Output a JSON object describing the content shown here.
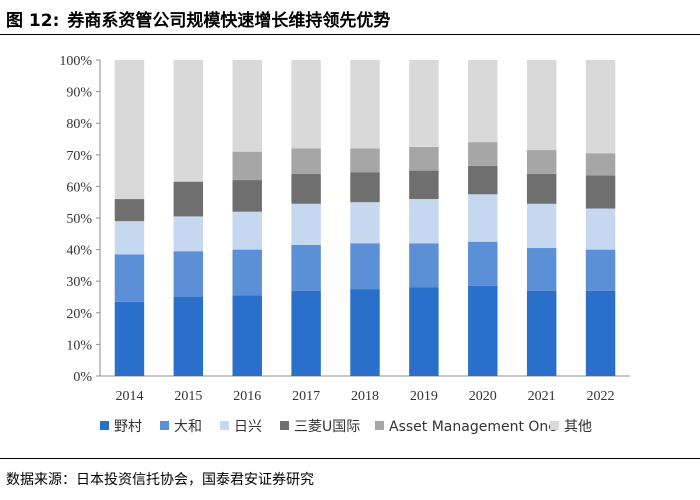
{
  "figure": {
    "label": "图 12:",
    "title": "券商系资管公司规模快速增长维持领先优势",
    "source": "数据来源：日本投资信托协会，国泰君安证券研究"
  },
  "colors": {
    "nomura": "#2a6fc9",
    "daiwa": "#5b8fd6",
    "nikko": "#c5d8f0",
    "mufg": "#6f6f6f",
    "amone": "#a6a6a6",
    "others": "#d9d9d9"
  },
  "chart_data": {
    "type": "bar",
    "stacked": true,
    "title": "券商系资管公司规模快速增长维持领先优势",
    "categories": [
      "2014",
      "2015",
      "2016",
      "2017",
      "2018",
      "2019",
      "2020",
      "2021",
      "2022"
    ],
    "yticks": [
      "0%",
      "10%",
      "20%",
      "30%",
      "40%",
      "50%",
      "60%",
      "70%",
      "80%",
      "90%",
      "100%"
    ],
    "ylim": [
      0,
      100
    ],
    "xlabel": "",
    "ylabel": "",
    "legend_position": "bottom",
    "series": [
      {
        "name": "野村",
        "key": "nomura",
        "values": [
          23.5,
          25,
          25.5,
          27,
          27.5,
          28,
          28.5,
          27,
          27
        ]
      },
      {
        "name": "大和",
        "key": "daiwa",
        "values": [
          15,
          14.5,
          14.5,
          14.5,
          14.5,
          14,
          14,
          13.5,
          13
        ]
      },
      {
        "name": "日兴",
        "key": "nikko",
        "values": [
          10.5,
          11,
          12,
          13,
          13,
          14,
          15,
          14,
          13
        ]
      },
      {
        "name": "三菱U国际",
        "key": "mufg",
        "values": [
          7,
          11,
          10,
          9.5,
          9.5,
          9,
          9,
          9.5,
          10.5
        ]
      },
      {
        "name": "Asset Management One",
        "key": "amone",
        "values": [
          0,
          0,
          9,
          8,
          7.5,
          7.5,
          7.5,
          7.5,
          7
        ]
      },
      {
        "name": "其他",
        "key": "others",
        "values": [
          44,
          38.5,
          29,
          28,
          28,
          27.5,
          26,
          28.5,
          29.5
        ]
      }
    ]
  }
}
